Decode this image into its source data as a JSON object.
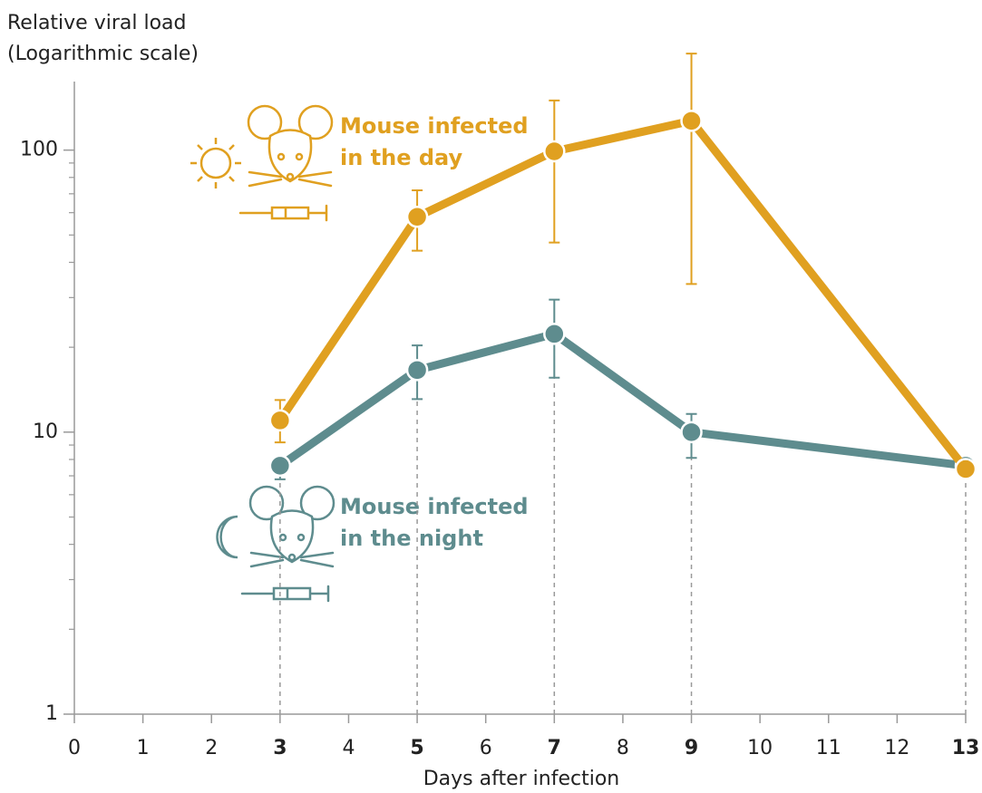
{
  "chart_data": {
    "type": "line",
    "y_label_lines": [
      "Relative viral load",
      "(Logarithmic scale)"
    ],
    "x_label": "Days after infection",
    "x": [
      3,
      5,
      7,
      9,
      13
    ],
    "xlim": [
      0,
      13
    ],
    "xticks": [
      0,
      1,
      2,
      3,
      4,
      5,
      6,
      7,
      8,
      9,
      10,
      11,
      12,
      13
    ],
    "ylim": [
      1,
      175
    ],
    "log_y": true,
    "yticks": [
      1,
      10,
      100
    ],
    "minor_yticks": [
      2,
      3,
      4,
      5,
      6,
      7,
      8,
      9,
      20,
      30,
      40,
      50,
      60,
      70,
      80,
      90
    ],
    "series": [
      {
        "label_lines": [
          "Mouse infected",
          "in the day"
        ],
        "color": "#e0a020",
        "values": [
          11,
          58,
          99,
          127,
          7.4
        ],
        "error_low": [
          9.2,
          44,
          47,
          33.5,
          null
        ],
        "error_high": [
          13,
          72,
          150,
          220,
          null
        ]
      },
      {
        "label_lines": [
          "Mouse infected",
          "in the night"
        ],
        "color": "#5e8c8e",
        "values": [
          7.6,
          16.6,
          22.3,
          10,
          7.6
        ],
        "error_low": [
          6.8,
          13.1,
          15.6,
          8.1,
          null
        ],
        "error_high": [
          null,
          20.3,
          29.5,
          11.6,
          null
        ]
      }
    ]
  }
}
